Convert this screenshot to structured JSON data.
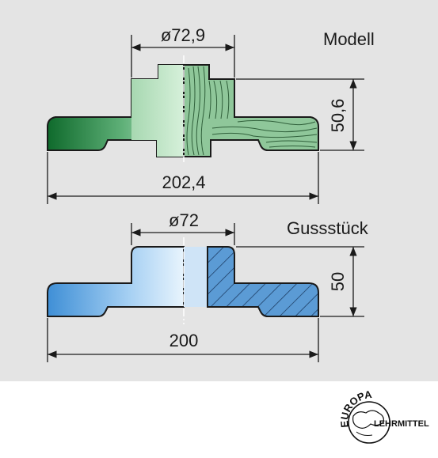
{
  "top": {
    "label": "Modell",
    "dim_diameter": "ø72,9",
    "dim_height": "50,6",
    "dim_width": "202,4"
  },
  "bottom": {
    "label": "Gussstück",
    "dim_diameter": "ø72",
    "dim_height": "50",
    "dim_width": "200"
  },
  "logo": {
    "line1": "EUROPA",
    "line2": "LEHRMITTEL"
  },
  "colors": {
    "panel": "#e4e4e4",
    "wood_green": "#8fc79a",
    "dark_green": "#1e7a3a",
    "steel_blue": "#9cc7ea",
    "hatch_blue": "#4d8fc8"
  }
}
